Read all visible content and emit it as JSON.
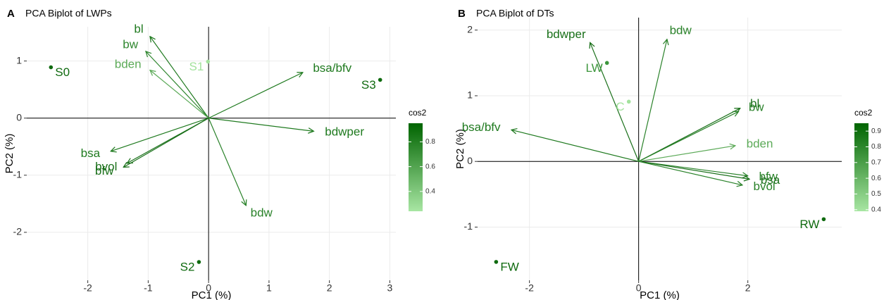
{
  "chart_data": [
    {
      "type": "biplot",
      "tag": "A",
      "title": "PCA Biplot of LWPs",
      "x_label": "PC1 (%)",
      "y_label": "PC2 (%)",
      "xlim": [
        -3.01,
        3.1
      ],
      "ylim": [
        -2.84,
        1.6
      ],
      "xticks": [
        -2,
        -1,
        0,
        1,
        2,
        3
      ],
      "yticks": [
        -2,
        -1,
        0,
        1
      ],
      "grid": true,
      "arrows": [
        {
          "name": "bl",
          "x": -0.97,
          "y": 1.43,
          "color": "#1f7a1f"
        },
        {
          "name": "bw",
          "x": -1.04,
          "y": 1.17,
          "color": "#2e862e"
        },
        {
          "name": "bden",
          "x": -0.97,
          "y": 0.84,
          "color": "#5caa58"
        },
        {
          "name": "bsa/bfv",
          "x": 1.56,
          "y": 0.8,
          "color": "#1f7a1f"
        },
        {
          "name": "bdwper",
          "x": 1.74,
          "y": -0.23,
          "color": "#1f7a1f"
        },
        {
          "name": "bsa",
          "x": -1.62,
          "y": -0.58,
          "color": "#1f7a1f"
        },
        {
          "name": "bvol",
          "x": -1.35,
          "y": -0.79,
          "color": "#1a701a"
        },
        {
          "name": "bfw",
          "x": -1.41,
          "y": -0.86,
          "color": "#1a701a"
        },
        {
          "name": "bdw",
          "x": 0.62,
          "y": -1.53,
          "color": "#2a822a"
        }
      ],
      "points": [
        {
          "name": "S0",
          "x": -2.61,
          "y": 0.89,
          "color": "#0f6a0f"
        },
        {
          "name": "S1",
          "x": -0.01,
          "y": 0.99,
          "color": "#a3e29d"
        },
        {
          "name": "S2",
          "x": -0.16,
          "y": -2.52,
          "color": "#0f6a0f"
        },
        {
          "name": "S3",
          "x": 2.84,
          "y": 0.67,
          "color": "#0f6a0f"
        }
      ],
      "colorbar": {
        "title": "cos2",
        "lim": [
          0.24,
          0.95
        ],
        "ticks": [
          0.4,
          0.6,
          0.8
        ],
        "colors": [
          "#a8e6a3",
          "#006400"
        ]
      }
    },
    {
      "type": "biplot",
      "tag": "B",
      "title": "PCA Biplot of DTs",
      "x_label": "PC1 (%)",
      "y_label": "PC2 (%)",
      "xlim": [
        -2.95,
        3.72
      ],
      "ylim": [
        -1.81,
        2.19
      ],
      "xticks": [
        -2,
        0,
        2
      ],
      "yticks": [
        -1,
        0,
        1,
        2
      ],
      "grid": true,
      "arrows": [
        {
          "name": "bdwper",
          "x": -0.89,
          "y": 1.81,
          "color": "#1a701a"
        },
        {
          "name": "bdw",
          "x": 0.52,
          "y": 1.86,
          "color": "#2a822a"
        },
        {
          "name": "bsa/bfv",
          "x": -2.33,
          "y": 0.48,
          "color": "#1f7a1f"
        },
        {
          "name": "bl",
          "x": 1.86,
          "y": 0.81,
          "color": "#1a701a"
        },
        {
          "name": "bw",
          "x": 1.83,
          "y": 0.76,
          "color": "#2a822a"
        },
        {
          "name": "bden",
          "x": 1.77,
          "y": 0.24,
          "color": "#5caa58"
        },
        {
          "name": "bfw",
          "x": 2.0,
          "y": -0.22,
          "color": "#2a822a"
        },
        {
          "name": "bsa",
          "x": 2.03,
          "y": -0.27,
          "color": "#1a701a"
        },
        {
          "name": "bvol",
          "x": 1.9,
          "y": -0.36,
          "color": "#2a822a"
        }
      ],
      "points": [
        {
          "name": "LW",
          "x": -0.58,
          "y": 1.5,
          "color": "#3d963d"
        },
        {
          "name": "C",
          "x": -0.18,
          "y": 0.91,
          "color": "#a3e29d"
        },
        {
          "name": "RW",
          "x": 3.39,
          "y": -0.88,
          "color": "#0f6a0f"
        },
        {
          "name": "FW",
          "x": -2.61,
          "y": -1.53,
          "color": "#0f6a0f"
        }
      ],
      "colorbar": {
        "title": "cos2",
        "lim": [
          0.39,
          0.95
        ],
        "ticks": [
          0.4,
          0.5,
          0.6,
          0.7,
          0.8,
          0.9
        ],
        "colors": [
          "#a8e6a3",
          "#006400"
        ]
      }
    }
  ]
}
